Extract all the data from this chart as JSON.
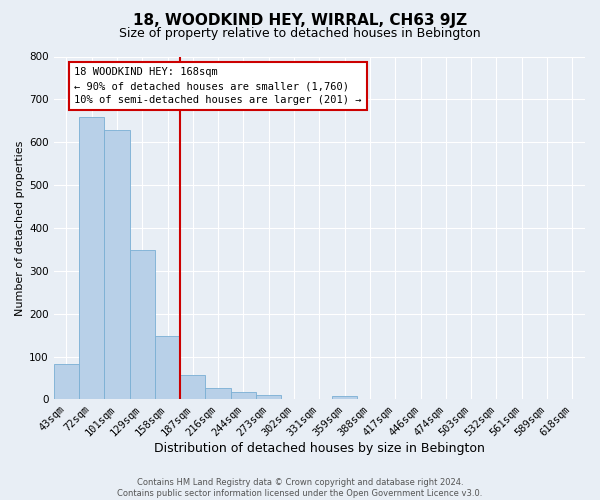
{
  "title": "18, WOODKIND HEY, WIRRAL, CH63 9JZ",
  "subtitle": "Size of property relative to detached houses in Bebington",
  "xlabel": "Distribution of detached houses by size in Bebington",
  "ylabel": "Number of detached properties",
  "bar_labels": [
    "43sqm",
    "72sqm",
    "101sqm",
    "129sqm",
    "158sqm",
    "187sqm",
    "216sqm",
    "244sqm",
    "273sqm",
    "302sqm",
    "331sqm",
    "359sqm",
    "388sqm",
    "417sqm",
    "446sqm",
    "474sqm",
    "503sqm",
    "532sqm",
    "561sqm",
    "589sqm",
    "618sqm"
  ],
  "bar_values": [
    83,
    660,
    628,
    348,
    148,
    57,
    27,
    18,
    10,
    0,
    0,
    8,
    0,
    0,
    0,
    0,
    0,
    0,
    0,
    0,
    0
  ],
  "bar_color": "#b8d0e8",
  "bar_edgecolor": "#7aafd4",
  "vline_x": 4.5,
  "vline_color": "#cc0000",
  "annotation_line1": "18 WOODKIND HEY: 168sqm",
  "annotation_line2": "← 90% of detached houses are smaller (1,760)",
  "annotation_line3": "10% of semi-detached houses are larger (201) →",
  "annotation_box_color": "#cc0000",
  "ylim": [
    0,
    800
  ],
  "yticks": [
    0,
    100,
    200,
    300,
    400,
    500,
    600,
    700,
    800
  ],
  "bg_color": "#e8eef5",
  "plot_bg_color": "#e8eef5",
  "footer_line1": "Contains HM Land Registry data © Crown copyright and database right 2024.",
  "footer_line2": "Contains public sector information licensed under the Open Government Licence v3.0.",
  "title_fontsize": 11,
  "subtitle_fontsize": 9,
  "xlabel_fontsize": 9,
  "ylabel_fontsize": 8,
  "tick_fontsize": 7.5,
  "annot_fontsize": 7.5,
  "footer_fontsize": 6
}
